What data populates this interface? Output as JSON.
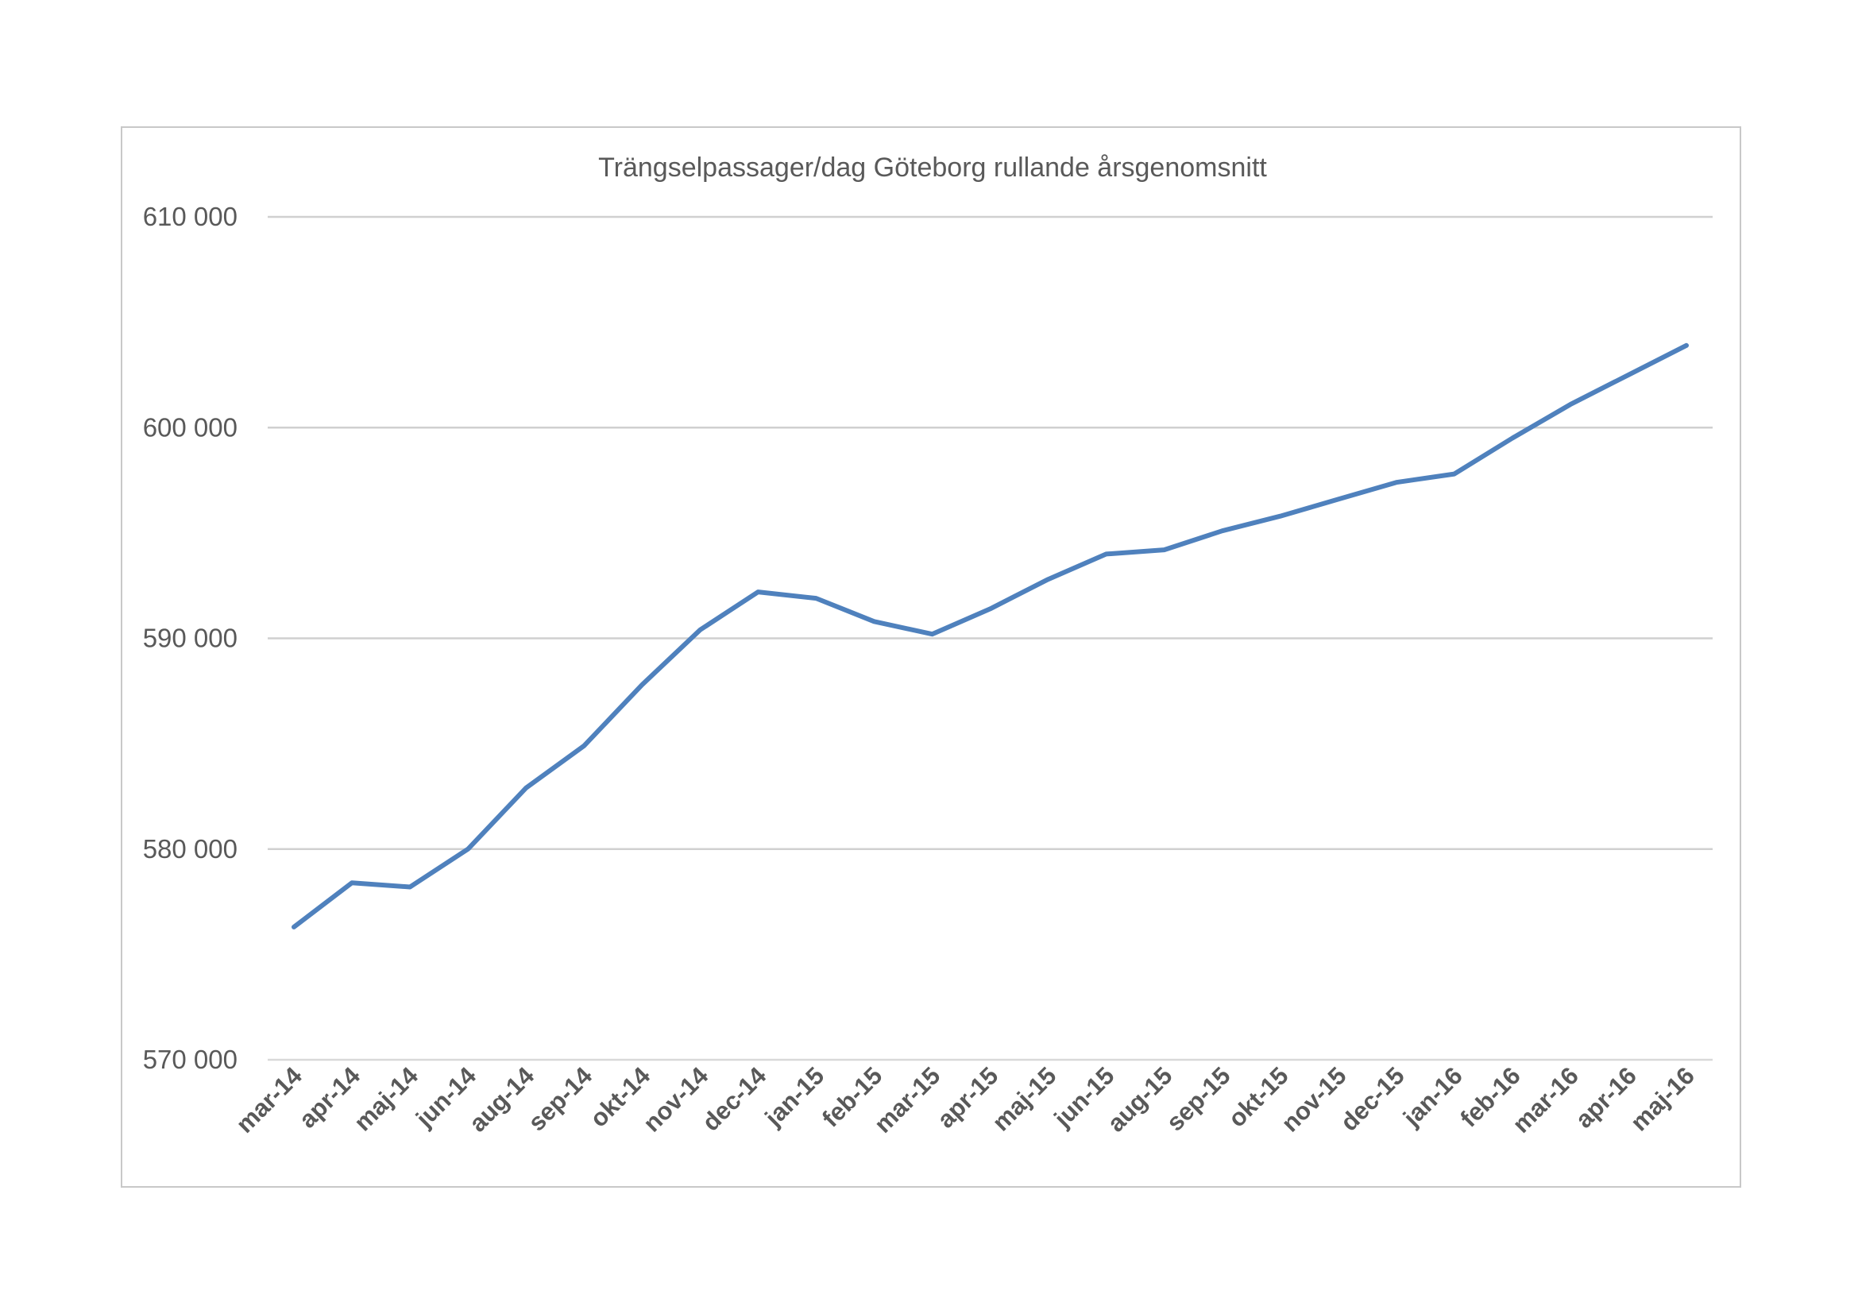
{
  "chart_data": {
    "type": "line",
    "title": "Trängselpassager/dag Göteborg rullande årsgenomsnitt",
    "xlabel": "",
    "ylabel": "",
    "categories": [
      "mar-14",
      "apr-14",
      "maj-14",
      "jun-14",
      "aug-14",
      "sep-14",
      "okt-14",
      "nov-14",
      "dec-14",
      "jan-15",
      "feb-15",
      "mar-15",
      "apr-15",
      "maj-15",
      "jun-15",
      "aug-15",
      "sep-15",
      "okt-15",
      "nov-15",
      "dec-15",
      "jan-16",
      "feb-16",
      "mar-16",
      "apr-16",
      "maj-16"
    ],
    "series": [
      {
        "values": [
          576300,
          578400,
          578200,
          580000,
          582900,
          584900,
          587800,
          590400,
          592200,
          591900,
          590800,
          590200,
          591400,
          592800,
          594000,
          594200,
          595100,
          595800,
          596600,
          597400,
          597800,
          599500,
          601100,
          602500,
          603900
        ],
        "color": "#4f81bd"
      }
    ],
    "ylim": [
      570000,
      610000
    ],
    "yticks": [
      570000,
      580000,
      590000,
      600000,
      610000
    ],
    "ytick_labels": [
      "570 000",
      "580 000",
      "590 000",
      "600 000",
      "610 000"
    ],
    "grid": true,
    "legend": "none"
  }
}
